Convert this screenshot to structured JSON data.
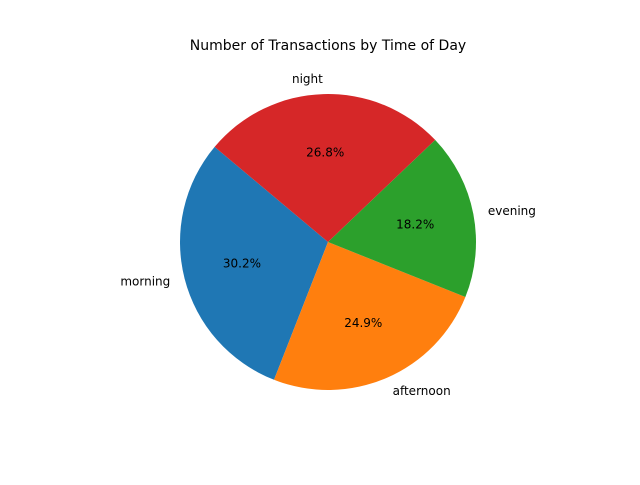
{
  "chart_data": {
    "type": "pie",
    "title": "Number of Transactions by Time of Day",
    "categories": [
      "morning",
      "afternoon",
      "evening",
      "night"
    ],
    "values": [
      30.2,
      24.9,
      18.2,
      26.8
    ],
    "labels_pct": [
      "30.2%",
      "24.9%",
      "18.2%",
      "26.8%"
    ],
    "colors": [
      "#1f77b4",
      "#ff7f0e",
      "#2ca02c",
      "#d62728"
    ],
    "legend": "none"
  }
}
